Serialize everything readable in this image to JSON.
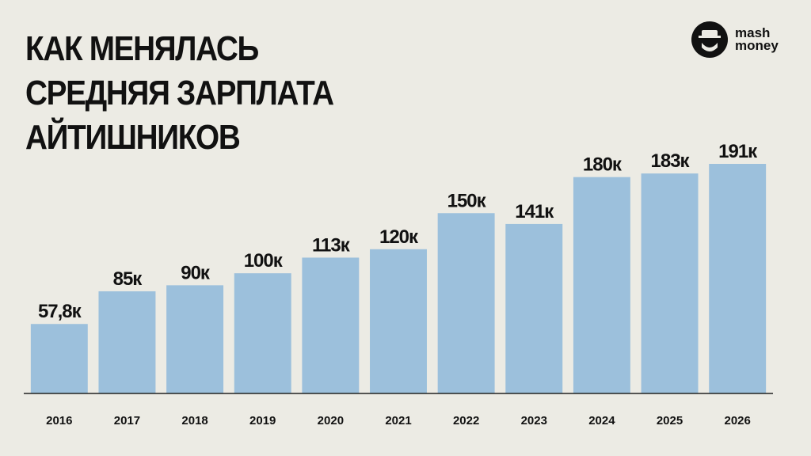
{
  "chart_data": {
    "type": "bar",
    "title": "КАК МЕНЯЛАСЬ СРЕДНЯЯ ЗАРПЛАТА АЙТИШНИКОВ",
    "logo": [
      "mash",
      "money"
    ],
    "categories": [
      "2016",
      "2017",
      "2018",
      "2019",
      "2020",
      "2021",
      "2022",
      "2023",
      "2024",
      "2025",
      "2026"
    ],
    "values": [
      57.8,
      85,
      90,
      100,
      113,
      120,
      150,
      141,
      180,
      183,
      191
    ],
    "value_labels": [
      "57,8к",
      "85к",
      "90к",
      "100к",
      "113к",
      "120к",
      "150к",
      "141к",
      "180к",
      "183к",
      "191к"
    ],
    "color": "#9cc0dc"
  }
}
